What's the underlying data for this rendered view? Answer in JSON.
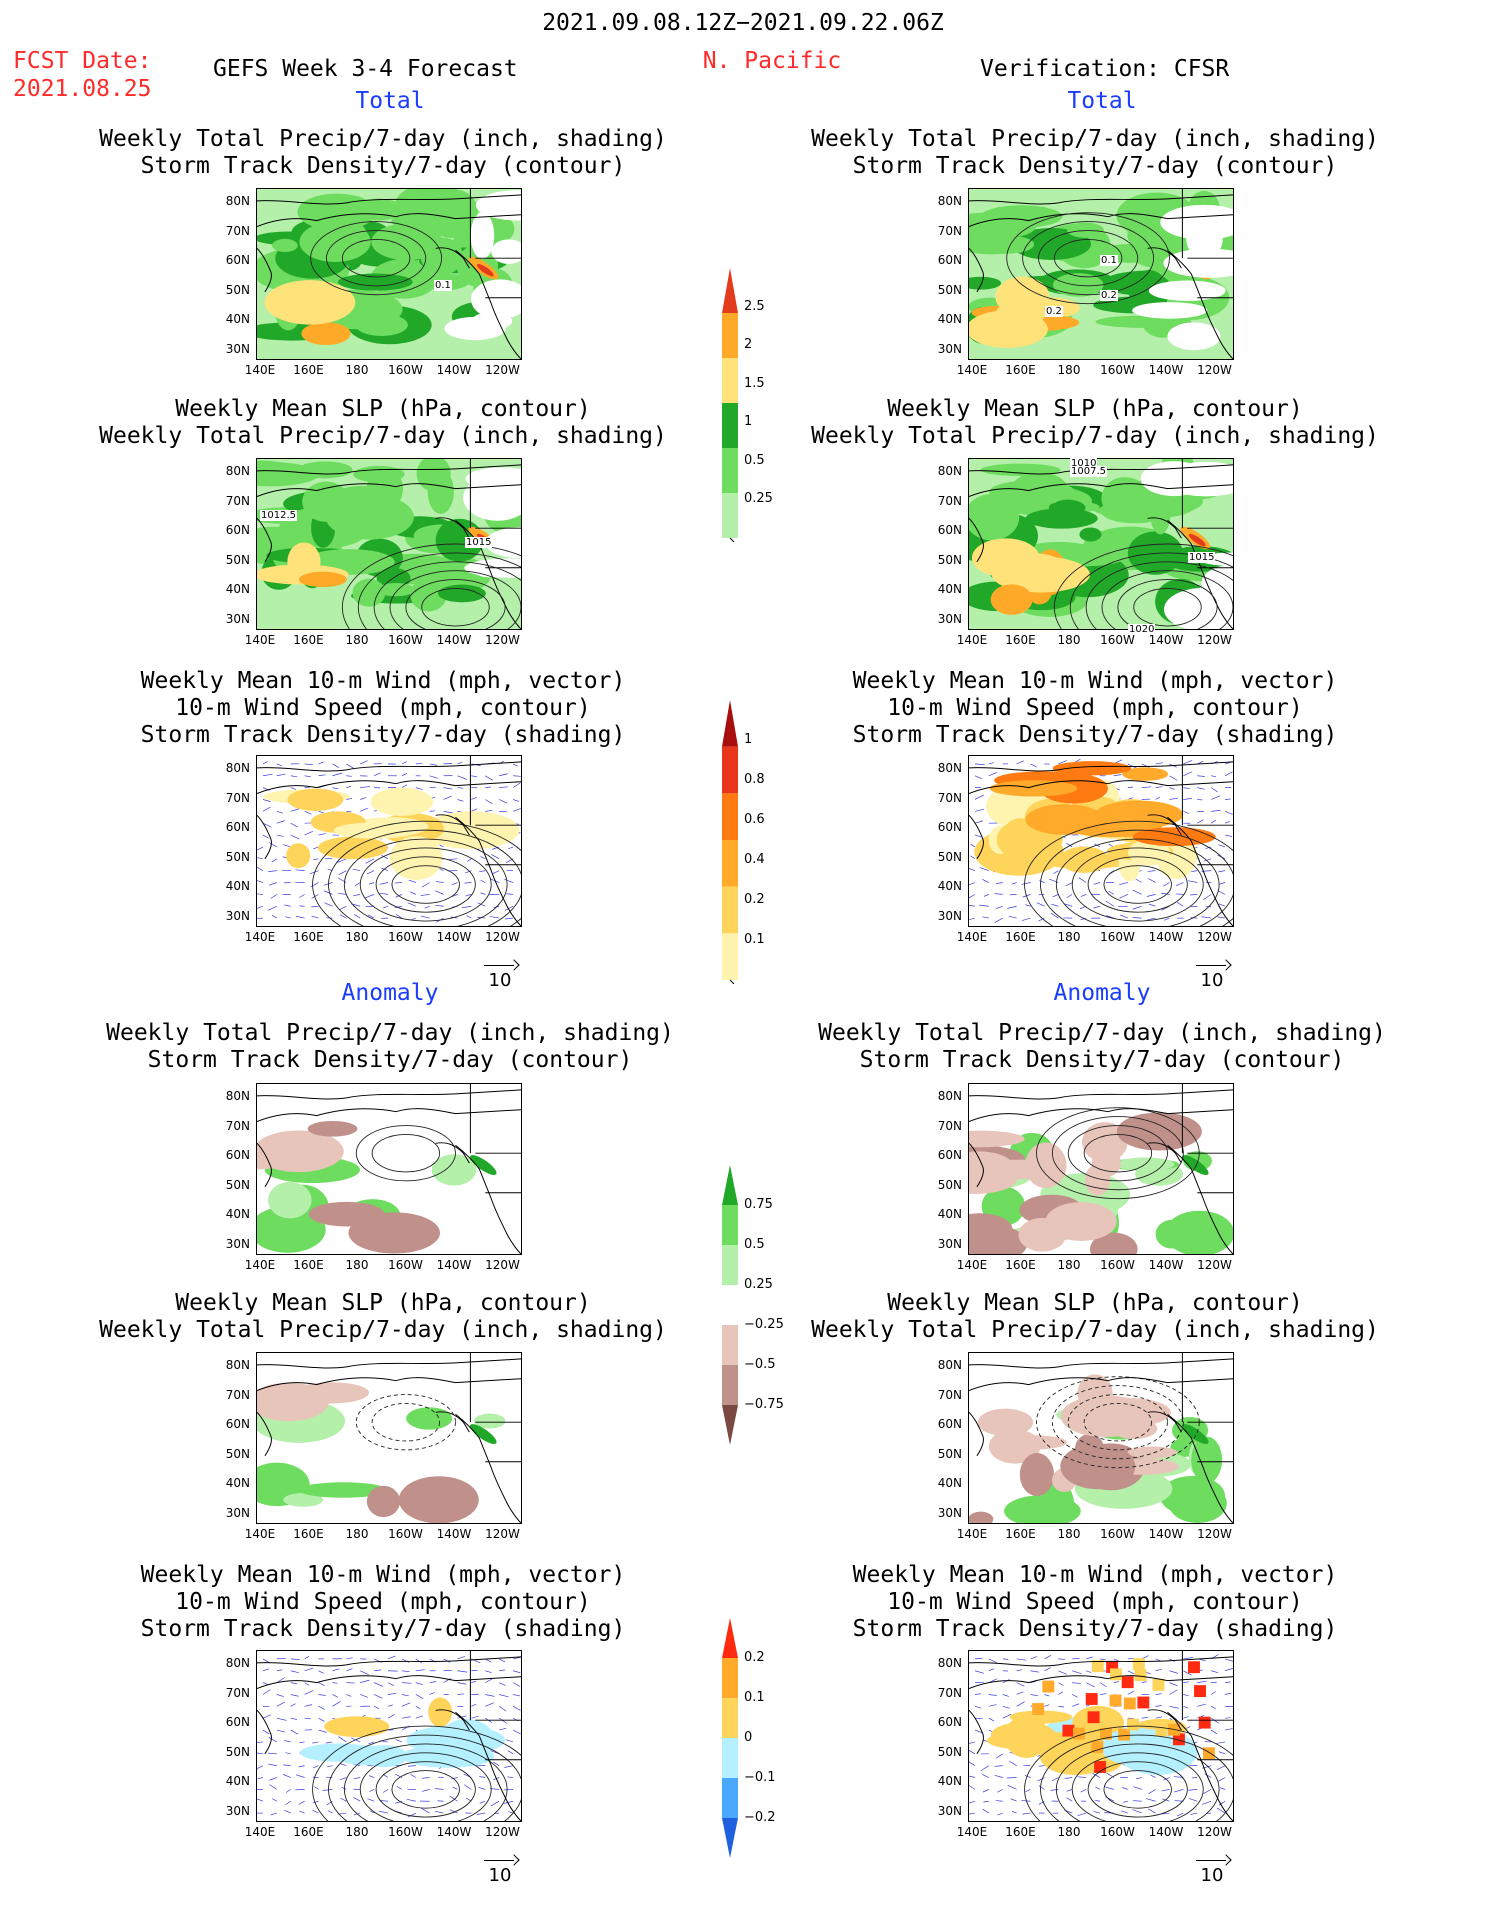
{
  "header": {
    "date_range": "2021.09.08.12Z−2021.09.22.06Z",
    "fcst_label": "FCST Date:",
    "fcst_date": "2021.08.25",
    "forecast_title": "GEFS Week 3-4 Forecast",
    "region": "N. Pacific",
    "verification": "Verification: CFSR"
  },
  "sections": {
    "total": "Total",
    "anomaly": "Anomaly"
  },
  "axes": {
    "lat": [
      "80N",
      "70N",
      "60N",
      "50N",
      "40N",
      "30N"
    ],
    "lon": [
      "140E",
      "160E",
      "180",
      "160W",
      "140W",
      "120W"
    ]
  },
  "titles": {
    "precip_storm": [
      "Weekly Total Precip/7-day (inch, shading)",
      "Storm Track Density/7-day (contour)"
    ],
    "slp_precip": [
      "Weekly Mean SLP (hPa, contour)",
      "Weekly Total Precip/7-day (inch, shading)"
    ],
    "wind": [
      "Weekly Mean 10-m Wind (mph, vector)",
      "10-m Wind Speed (mph, contour)",
      "Storm Track Density/7-day (shading)"
    ]
  },
  "vector_ref": "10",
  "colorbars": {
    "precip_total": [
      "2.5",
      "2",
      "1.5",
      "1",
      "0.5",
      "0.25"
    ],
    "storm_total": [
      "1",
      "0.8",
      "0.6",
      "0.4",
      "0.2",
      "0.1"
    ],
    "precip_anom": [
      "0.75",
      "0.5",
      "0.25",
      "−0.25",
      "−0.5",
      "−0.75"
    ],
    "storm_anom": [
      "0.2",
      "0.1",
      "0",
      "−0.1",
      "−0.2"
    ]
  },
  "contour_labels": {
    "p1_left": "0.1",
    "p1_right_a": "0.1",
    "p1_right_b": "0.2",
    "p1_right_c": "0.2",
    "p2_left_a": "1012.5",
    "p2_left_b": "1015",
    "p2_right_a": "1010",
    "p2_right_b": "1007.5",
    "p2_right_c": "1015",
    "p2_right_d": "1020"
  },
  "colors": {
    "precip": [
      "#b4f0aa",
      "#6edc5f",
      "#22a829",
      "#ffe37a",
      "#ffa928",
      "#e33b1d"
    ],
    "storm": [
      "#fff3b0",
      "#ffd45a",
      "#ffaa2a",
      "#ff7a10",
      "#e8361a",
      "#a80e0e"
    ],
    "anom_pos": [
      "#b4f0aa",
      "#6edc5f",
      "#22a829"
    ],
    "anom_neg": [
      "#e8c5bb",
      "#c0908a",
      "#7a4a42"
    ],
    "storm_anom": [
      "#ffd45a",
      "#ffaa2a",
      "#ff2a10",
      "#b4f0ff",
      "#4aa8ff",
      "#1f5fe0"
    ]
  }
}
